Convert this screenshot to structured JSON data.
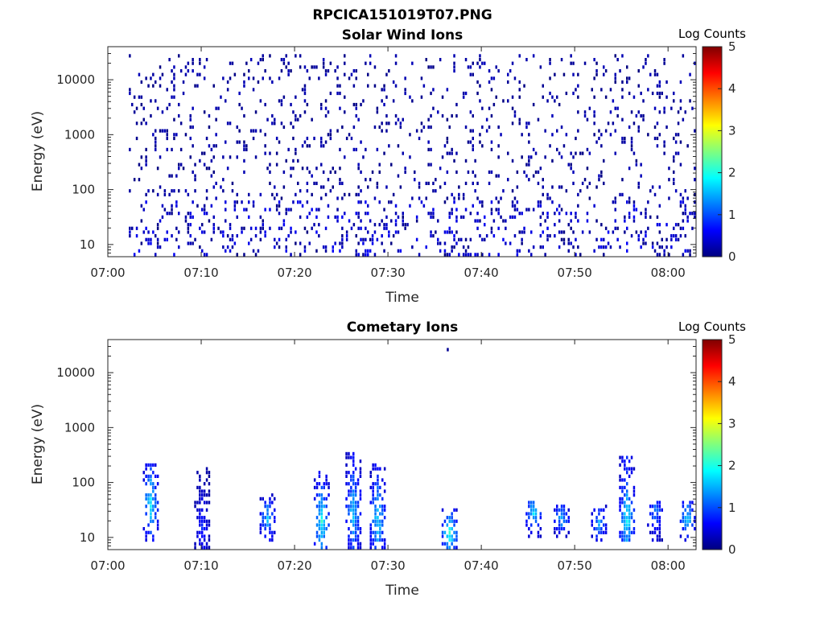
{
  "figure": {
    "title": "RPCICA151019T07.PNG"
  },
  "colormap": [
    "#00007f",
    "#0000ff",
    "#007fff",
    "#00ffff",
    "#7fff7f",
    "#ffff00",
    "#ff7f00",
    "#ff0000",
    "#7f0000"
  ],
  "chart_data": [
    {
      "type": "heatmap",
      "title": "Solar Wind Ions",
      "xlabel": "Time",
      "ylabel": "Energy (eV)",
      "y_scale": "log",
      "x_range": [
        "07:00",
        "08:03"
      ],
      "ylim": [
        6,
        40000
      ],
      "x_ticks": [
        "07:00",
        "07:10",
        "07:20",
        "07:30",
        "07:40",
        "07:50",
        "08:00"
      ],
      "y_ticks": [
        10,
        100,
        1000,
        10000
      ],
      "colorbar": {
        "label": "Log Counts",
        "range": [
          0,
          5
        ],
        "ticks": [
          0,
          1,
          2,
          3,
          4,
          5
        ]
      },
      "z_unit": "log10 counts",
      "summary": {
        "low_energy_band_eV": [
          6,
          60
        ],
        "low_energy_band_log_counts": [
          0,
          0.6
        ],
        "scattered_speckle_eV": [
          60,
          30000
        ],
        "scattered_speckle_log_counts": [
          0,
          0.3
        ],
        "data_start": "07:02",
        "data_end": "08:03"
      }
    },
    {
      "type": "heatmap",
      "title": "Cometary Ions",
      "xlabel": "Time",
      "ylabel": "Energy (eV)",
      "y_scale": "log",
      "x_range": [
        "07:00",
        "08:03"
      ],
      "ylim": [
        6,
        40000
      ],
      "x_ticks": [
        "07:00",
        "07:10",
        "07:20",
        "07:30",
        "07:40",
        "07:50",
        "08:00"
      ],
      "y_ticks": [
        10,
        100,
        1000,
        10000
      ],
      "colorbar": {
        "label": "Log Counts",
        "range": [
          0,
          5
        ],
        "ticks": [
          0,
          1,
          2,
          3,
          4,
          5
        ]
      },
      "z_unit": "log10 counts",
      "bursts": [
        {
          "time": "07:04.5",
          "e_min": 8,
          "e_max": 230,
          "peak_eV": 45,
          "peak_log_counts": 1.9
        },
        {
          "time": "07:10.0",
          "e_min": 6,
          "e_max": 230,
          "peak_eV": 14,
          "peak_log_counts": 0.8
        },
        {
          "time": "07:17.0",
          "e_min": 8,
          "e_max": 60,
          "peak_eV": 22,
          "peak_log_counts": 1.6
        },
        {
          "time": "07:22.8",
          "e_min": 6,
          "e_max": 160,
          "peak_eV": 20,
          "peak_log_counts": 2.1
        },
        {
          "time": "07:26.2",
          "e_min": 6,
          "e_max": 350,
          "peak_eV": 30,
          "peak_log_counts": 1.7
        },
        {
          "time": "07:28.8",
          "e_min": 6,
          "e_max": 230,
          "peak_eV": 22,
          "peak_log_counts": 1.9
        },
        {
          "time": "07:36.5",
          "e_min": 6,
          "e_max": 35,
          "peak_eV": 12,
          "peak_log_counts": 2.4
        },
        {
          "time": "07:45.5",
          "e_min": 10,
          "e_max": 50,
          "peak_eV": 28,
          "peak_log_counts": 1.9
        },
        {
          "time": "07:48.5",
          "e_min": 10,
          "e_max": 40,
          "peak_eV": 22,
          "peak_log_counts": 1.6
        },
        {
          "time": "07:52.5",
          "e_min": 8,
          "e_max": 40,
          "peak_eV": 18,
          "peak_log_counts": 1.5
        },
        {
          "time": "07:55.5",
          "e_min": 8,
          "e_max": 300,
          "peak_eV": 22,
          "peak_log_counts": 2.0
        },
        {
          "time": "07:58.5",
          "e_min": 8,
          "e_max": 50,
          "peak_eV": 30,
          "peak_log_counts": 1.4
        },
        {
          "time": "08:02.0",
          "e_min": 8,
          "e_max": 45,
          "peak_eV": 22,
          "peak_log_counts": 1.8
        }
      ],
      "isolated_points": [
        {
          "time": "07:36.3",
          "eV": 26000
        }
      ]
    }
  ]
}
